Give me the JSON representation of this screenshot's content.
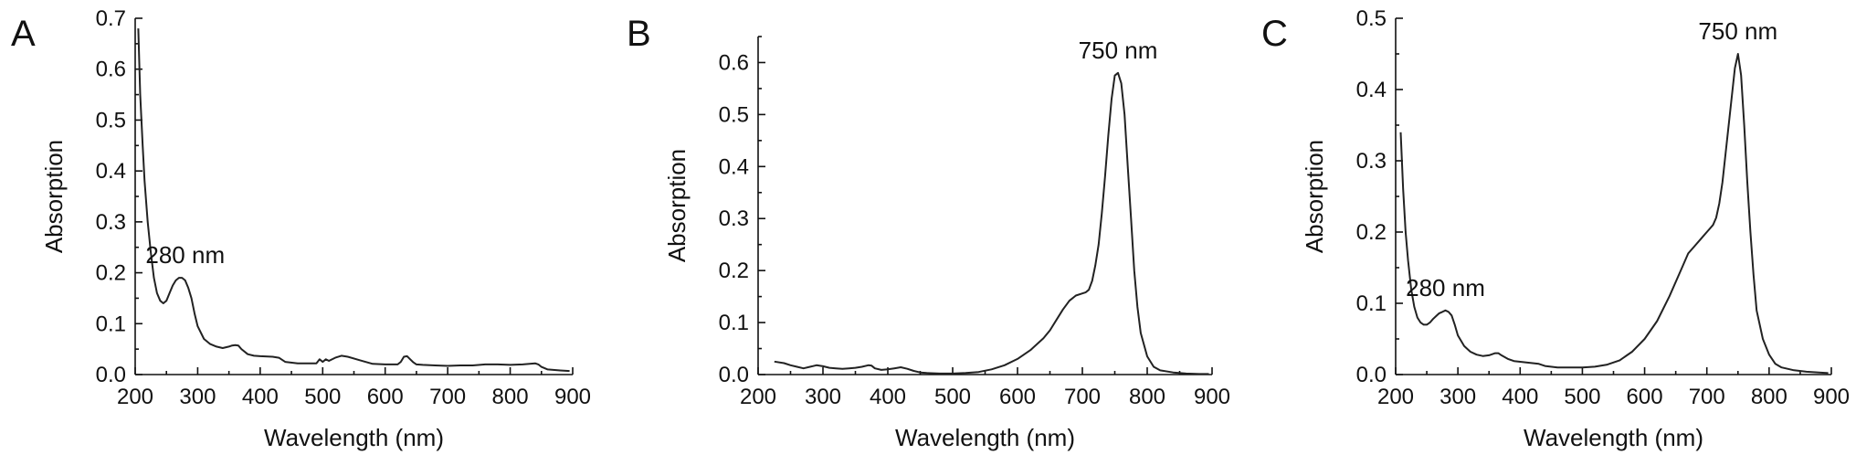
{
  "chart_data": [
    {
      "panel": "A",
      "type": "line",
      "xlabel": "Wavelength (nm)",
      "ylabel": "Absorption",
      "xlim": [
        200,
        900
      ],
      "ylim": [
        0,
        0.7
      ],
      "xticks": [
        "200",
        "300",
        "400",
        "500",
        "600",
        "700",
        "800",
        "900"
      ],
      "yticks": [
        "0.0",
        "0.1",
        "0.2",
        "0.3",
        "0.4",
        "0.5",
        "0.6",
        "0.7"
      ],
      "annotations": [
        {
          "text": "280 nm",
          "x": 280,
          "y": 0.19
        }
      ],
      "series": [
        {
          "x": [
            205,
            208,
            212,
            215,
            220,
            225,
            230,
            235,
            240,
            245,
            250,
            255,
            260,
            265,
            270,
            275,
            280,
            285,
            290,
            295,
            300,
            310,
            320,
            330,
            340,
            350,
            355,
            360,
            365,
            370,
            380,
            390,
            400,
            420,
            430,
            440,
            460,
            480,
            490,
            495,
            500,
            505,
            510,
            520,
            530,
            540,
            560,
            580,
            600,
            620,
            625,
            630,
            635,
            640,
            645,
            650,
            660,
            680,
            700,
            720,
            740,
            760,
            780,
            800,
            820,
            840,
            845,
            850,
            860,
            880,
            895
          ],
          "y": [
            0.68,
            0.55,
            0.45,
            0.38,
            0.3,
            0.24,
            0.19,
            0.16,
            0.145,
            0.14,
            0.145,
            0.16,
            0.175,
            0.185,
            0.19,
            0.19,
            0.185,
            0.17,
            0.15,
            0.12,
            0.095,
            0.07,
            0.06,
            0.055,
            0.052,
            0.055,
            0.057,
            0.058,
            0.057,
            0.05,
            0.04,
            0.037,
            0.036,
            0.035,
            0.033,
            0.025,
            0.022,
            0.022,
            0.022,
            0.03,
            0.025,
            0.03,
            0.027,
            0.033,
            0.037,
            0.035,
            0.028,
            0.021,
            0.02,
            0.02,
            0.025,
            0.035,
            0.036,
            0.03,
            0.024,
            0.02,
            0.019,
            0.018,
            0.017,
            0.018,
            0.018,
            0.02,
            0.02,
            0.019,
            0.02,
            0.022,
            0.02,
            0.015,
            0.01,
            0.008,
            0.007
          ]
        }
      ]
    },
    {
      "panel": "B",
      "type": "line",
      "xlabel": "Wavelength (nm)",
      "ylabel": "Absorption",
      "xlim": [
        200,
        900
      ],
      "ylim": [
        0,
        0.65
      ],
      "xticks": [
        "200",
        "300",
        "400",
        "500",
        "600",
        "700",
        "800",
        "900"
      ],
      "yticks": [
        "0.0",
        "0.1",
        "0.2",
        "0.3",
        "0.4",
        "0.5",
        "0.6"
      ],
      "annotations": [
        {
          "text": "750 nm",
          "x": 755,
          "y": 0.58
        }
      ],
      "series": [
        {
          "x": [
            225,
            240,
            250,
            260,
            270,
            280,
            290,
            300,
            310,
            320,
            330,
            340,
            350,
            360,
            370,
            375,
            380,
            390,
            400,
            410,
            420,
            430,
            440,
            450,
            460,
            480,
            500,
            520,
            540,
            560,
            580,
            600,
            620,
            640,
            650,
            660,
            670,
            680,
            690,
            700,
            705,
            710,
            715,
            720,
            725,
            730,
            735,
            740,
            745,
            750,
            755,
            760,
            765,
            770,
            775,
            780,
            785,
            790,
            800,
            810,
            820,
            840,
            860,
            880,
            895
          ],
          "y": [
            0.025,
            0.022,
            0.018,
            0.015,
            0.012,
            0.015,
            0.018,
            0.016,
            0.013,
            0.012,
            0.011,
            0.012,
            0.013,
            0.015,
            0.018,
            0.017,
            0.012,
            0.009,
            0.01,
            0.012,
            0.014,
            0.011,
            0.007,
            0.004,
            0.003,
            0.002,
            0.002,
            0.003,
            0.005,
            0.01,
            0.018,
            0.03,
            0.047,
            0.07,
            0.085,
            0.105,
            0.125,
            0.142,
            0.152,
            0.156,
            0.158,
            0.163,
            0.18,
            0.21,
            0.25,
            0.31,
            0.38,
            0.46,
            0.53,
            0.575,
            0.58,
            0.56,
            0.5,
            0.4,
            0.3,
            0.2,
            0.13,
            0.08,
            0.035,
            0.015,
            0.008,
            0.004,
            0.002,
            0.001,
            0.001
          ]
        }
      ]
    },
    {
      "panel": "C",
      "type": "line",
      "xlabel": "Wavelength (nm)",
      "ylabel": "Absorption",
      "xlim": [
        200,
        900
      ],
      "ylim": [
        0,
        0.5
      ],
      "xticks": [
        "200",
        "300",
        "400",
        "500",
        "600",
        "700",
        "800",
        "900"
      ],
      "yticks": [
        "0.0",
        "0.1",
        "0.2",
        "0.3",
        "0.4",
        "0.5"
      ],
      "annotations": [
        {
          "text": "280 nm",
          "x": 280,
          "y": 0.09
        },
        {
          "text": "750 nm",
          "x": 750,
          "y": 0.45
        }
      ],
      "series": [
        {
          "x": [
            208,
            212,
            216,
            220,
            225,
            230,
            235,
            240,
            245,
            250,
            255,
            260,
            265,
            270,
            275,
            280,
            285,
            290,
            295,
            300,
            310,
            320,
            330,
            340,
            350,
            360,
            365,
            370,
            380,
            390,
            400,
            420,
            430,
            440,
            460,
            480,
            500,
            520,
            540,
            560,
            580,
            600,
            620,
            640,
            660,
            670,
            680,
            690,
            700,
            705,
            710,
            715,
            720,
            725,
            730,
            735,
            740,
            745,
            750,
            755,
            760,
            765,
            770,
            775,
            780,
            790,
            800,
            810,
            820,
            840,
            860,
            880,
            895
          ],
          "y": [
            0.34,
            0.26,
            0.2,
            0.16,
            0.12,
            0.095,
            0.08,
            0.073,
            0.07,
            0.07,
            0.073,
            0.078,
            0.082,
            0.086,
            0.088,
            0.09,
            0.088,
            0.083,
            0.07,
            0.055,
            0.04,
            0.032,
            0.028,
            0.026,
            0.027,
            0.03,
            0.03,
            0.027,
            0.022,
            0.019,
            0.018,
            0.016,
            0.015,
            0.012,
            0.01,
            0.01,
            0.01,
            0.011,
            0.014,
            0.02,
            0.032,
            0.05,
            0.075,
            0.11,
            0.15,
            0.17,
            0.18,
            0.19,
            0.2,
            0.205,
            0.21,
            0.22,
            0.24,
            0.27,
            0.31,
            0.35,
            0.39,
            0.43,
            0.45,
            0.42,
            0.35,
            0.27,
            0.2,
            0.14,
            0.09,
            0.05,
            0.028,
            0.015,
            0.01,
            0.006,
            0.004,
            0.003,
            0.002
          ]
        }
      ]
    }
  ]
}
